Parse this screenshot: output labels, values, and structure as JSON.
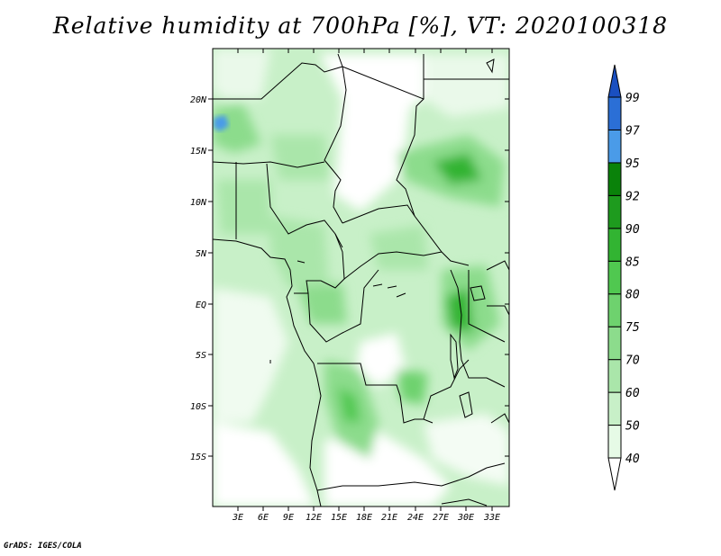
{
  "title": "Relative humidity at 700hPa [%], VT: 2020100318",
  "credit": "GrADS: IGES/COLA",
  "map": {
    "lat_labels": [
      "20N",
      "15N",
      "10N",
      "5N",
      "EQ",
      "5S",
      "10S",
      "15S"
    ],
    "lon_labels": [
      "3E",
      "6E",
      "9E",
      "12E",
      "15E",
      "18E",
      "21E",
      "24E",
      "27E",
      "30E",
      "33E"
    ]
  },
  "colorbar": {
    "labels": [
      "40",
      "50",
      "60",
      "70",
      "75",
      "80",
      "85",
      "90",
      "92",
      "95",
      "97",
      "99"
    ],
    "colors": [
      "#ffffff",
      "#e6fae6",
      "#c8f0c8",
      "#aae6aa",
      "#8cdc8c",
      "#6ed26e",
      "#50c850",
      "#32b432",
      "#1e9b1e",
      "#0a820a",
      "#4a9be8",
      "#2b6fd6",
      "#1a4fc0"
    ]
  }
}
